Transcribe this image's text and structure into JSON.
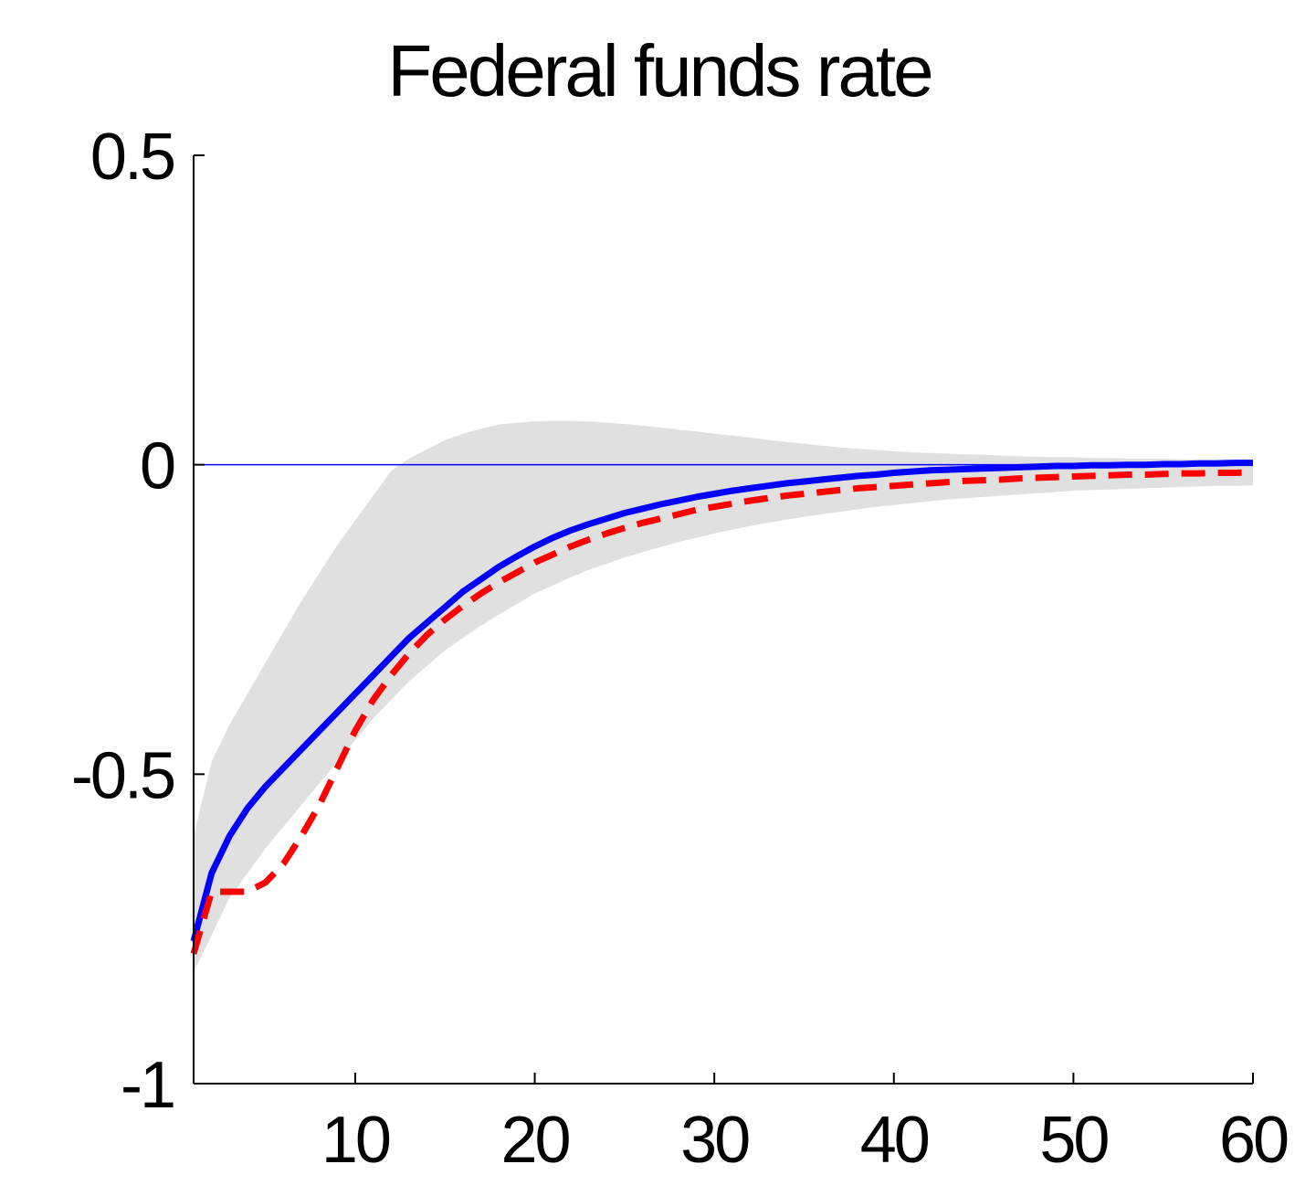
{
  "chart_data": {
    "type": "line",
    "title": "Federal funds rate",
    "xlabel": "",
    "ylabel": "",
    "xlim": [
      1,
      60
    ],
    "ylim": [
      -1,
      0.5
    ],
    "xticks": [
      10,
      20,
      30,
      40,
      50,
      60
    ],
    "yticks": [
      -1,
      -0.5,
      0,
      0.5
    ],
    "xtick_labels": [
      "10",
      "20",
      "30",
      "40",
      "50",
      "60"
    ],
    "ytick_labels": [
      "-1",
      "-0.5",
      "0",
      "0.5"
    ],
    "grid": false,
    "zero_line": true,
    "x": [
      1,
      2,
      3,
      4,
      5,
      6,
      7,
      8,
      9,
      10,
      11,
      12,
      13,
      14,
      15,
      16,
      17,
      18,
      19,
      20,
      21,
      22,
      23,
      24,
      25,
      26,
      27,
      28,
      29,
      30,
      31,
      32,
      33,
      34,
      35,
      36,
      37,
      38,
      39,
      40,
      41,
      42,
      43,
      44,
      45,
      46,
      47,
      48,
      49,
      50,
      51,
      52,
      53,
      54,
      55,
      56,
      57,
      58,
      59,
      60
    ],
    "series": [
      {
        "style": "solid",
        "color": "#0000ff",
        "values": [
          -0.77,
          -0.66,
          -0.6,
          -0.555,
          -0.52,
          -0.49,
          -0.46,
          -0.43,
          -0.4,
          -0.37,
          -0.34,
          -0.31,
          -0.28,
          -0.255,
          -0.23,
          -0.205,
          -0.185,
          -0.165,
          -0.148,
          -0.132,
          -0.118,
          -0.106,
          -0.096,
          -0.087,
          -0.078,
          -0.071,
          -0.064,
          -0.058,
          -0.052,
          -0.047,
          -0.042,
          -0.038,
          -0.034,
          -0.03,
          -0.027,
          -0.024,
          -0.021,
          -0.018,
          -0.016,
          -0.013,
          -0.011,
          -0.009,
          -0.008,
          -0.007,
          -0.006,
          -0.005,
          -0.004,
          -0.003,
          -0.002,
          -0.002,
          -0.001,
          -0.001,
          0,
          0,
          0.001,
          0.001,
          0.002,
          0.002,
          0.003,
          0.003
        ]
      },
      {
        "style": "dashed",
        "color": "#ff0000",
        "values": [
          -0.79,
          -0.69,
          -0.69,
          -0.69,
          -0.675,
          -0.645,
          -0.6,
          -0.55,
          -0.49,
          -0.43,
          -0.38,
          -0.34,
          -0.305,
          -0.275,
          -0.25,
          -0.228,
          -0.208,
          -0.19,
          -0.174,
          -0.158,
          -0.145,
          -0.132,
          -0.121,
          -0.111,
          -0.102,
          -0.094,
          -0.087,
          -0.08,
          -0.073,
          -0.068,
          -0.063,
          -0.058,
          -0.054,
          -0.05,
          -0.047,
          -0.044,
          -0.041,
          -0.038,
          -0.036,
          -0.034,
          -0.032,
          -0.03,
          -0.028,
          -0.026,
          -0.025,
          -0.024,
          -0.022,
          -0.021,
          -0.02,
          -0.019,
          -0.018,
          -0.017,
          -0.016,
          -0.016,
          -0.015,
          -0.014,
          -0.014,
          -0.013,
          -0.013,
          -0.012
        ]
      }
    ],
    "band": {
      "color": "#e0e0e0",
      "upper": [
        -0.6,
        -0.48,
        -0.42,
        -0.37,
        -0.32,
        -0.27,
        -0.22,
        -0.175,
        -0.13,
        -0.09,
        -0.05,
        -0.01,
        0.01,
        0.025,
        0.04,
        0.05,
        0.058,
        0.065,
        0.068,
        0.07,
        0.071,
        0.071,
        0.07,
        0.068,
        0.066,
        0.063,
        0.06,
        0.057,
        0.054,
        0.05,
        0.047,
        0.044,
        0.04,
        0.037,
        0.034,
        0.031,
        0.028,
        0.026,
        0.024,
        0.022,
        0.02,
        0.019,
        0.018,
        0.017,
        0.016,
        0.015,
        0.014,
        0.013,
        0.012,
        0.012,
        0.011,
        0.011,
        0.01,
        0.01,
        0.01,
        0.009,
        0.009,
        0.009,
        0.008,
        0.008
      ],
      "lower": [
        -0.82,
        -0.76,
        -0.7,
        -0.66,
        -0.62,
        -0.585,
        -0.55,
        -0.515,
        -0.48,
        -0.445,
        -0.41,
        -0.38,
        -0.35,
        -0.325,
        -0.3,
        -0.28,
        -0.26,
        -0.242,
        -0.225,
        -0.208,
        -0.195,
        -0.182,
        -0.17,
        -0.16,
        -0.15,
        -0.141,
        -0.133,
        -0.125,
        -0.118,
        -0.111,
        -0.105,
        -0.099,
        -0.094,
        -0.089,
        -0.084,
        -0.08,
        -0.076,
        -0.072,
        -0.068,
        -0.065,
        -0.062,
        -0.059,
        -0.056,
        -0.054,
        -0.052,
        -0.05,
        -0.048,
        -0.046,
        -0.044,
        -0.042,
        -0.041,
        -0.04,
        -0.039,
        -0.038,
        -0.037,
        -0.036,
        -0.035,
        -0.034,
        -0.034,
        -0.033
      ]
    }
  }
}
